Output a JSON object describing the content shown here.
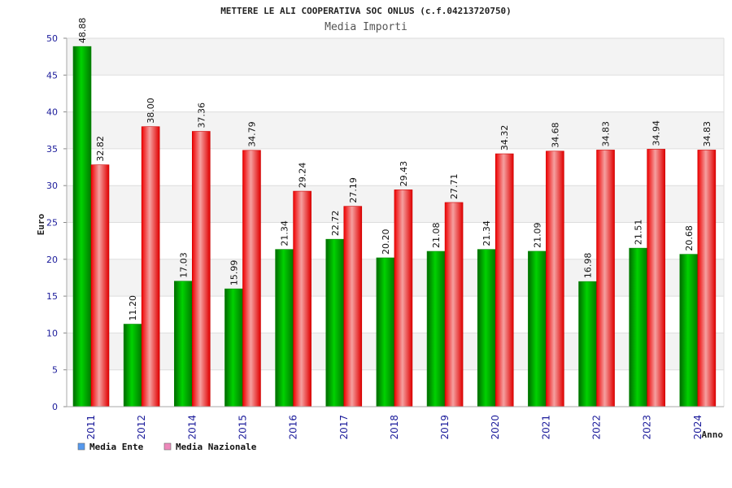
{
  "chart_data": {
    "type": "bar",
    "title": "METTERE LE ALI COOPERATIVA SOC ONLUS (c.f.04213720750)",
    "subtitle": "Media Importi",
    "xlabel": "Anno",
    "ylabel": "Euro",
    "ylim": [
      0,
      50
    ],
    "yticks": [
      0,
      5,
      10,
      15,
      20,
      25,
      30,
      35,
      40,
      45,
      50
    ],
    "categories": [
      "2011",
      "2012",
      "2014",
      "2015",
      "2016",
      "2017",
      "2018",
      "2019",
      "2020",
      "2021",
      "2022",
      "2023",
      "2024"
    ],
    "series": [
      {
        "name": "Media Ente",
        "color": "#00b400",
        "legend_color": "#5599ee",
        "values": [
          48.88,
          11.2,
          17.03,
          15.99,
          21.34,
          22.72,
          20.2,
          21.08,
          21.34,
          21.09,
          16.98,
          21.51,
          20.68
        ],
        "labels": [
          "48.88",
          "11.20",
          "17.03",
          "15.99",
          "21.34",
          "22.72",
          "20.20",
          "21.08",
          "21.34",
          "21.09",
          "16.98",
          "21.51",
          "20.68"
        ]
      },
      {
        "name": "Media Nazionale",
        "color": "#ee1111",
        "legend_color": "#ee88bb",
        "values": [
          32.82,
          38.0,
          37.36,
          34.79,
          29.24,
          27.19,
          29.43,
          27.71,
          34.32,
          34.68,
          34.83,
          34.94,
          34.83
        ],
        "labels": [
          "32.82",
          "38.00",
          "37.36",
          "34.79",
          "29.24",
          "27.19",
          "29.43",
          "27.71",
          "34.32",
          "34.68",
          "34.83",
          "34.94",
          "34.83"
        ]
      }
    ],
    "grid": true,
    "legend_position": "bottom-left"
  }
}
